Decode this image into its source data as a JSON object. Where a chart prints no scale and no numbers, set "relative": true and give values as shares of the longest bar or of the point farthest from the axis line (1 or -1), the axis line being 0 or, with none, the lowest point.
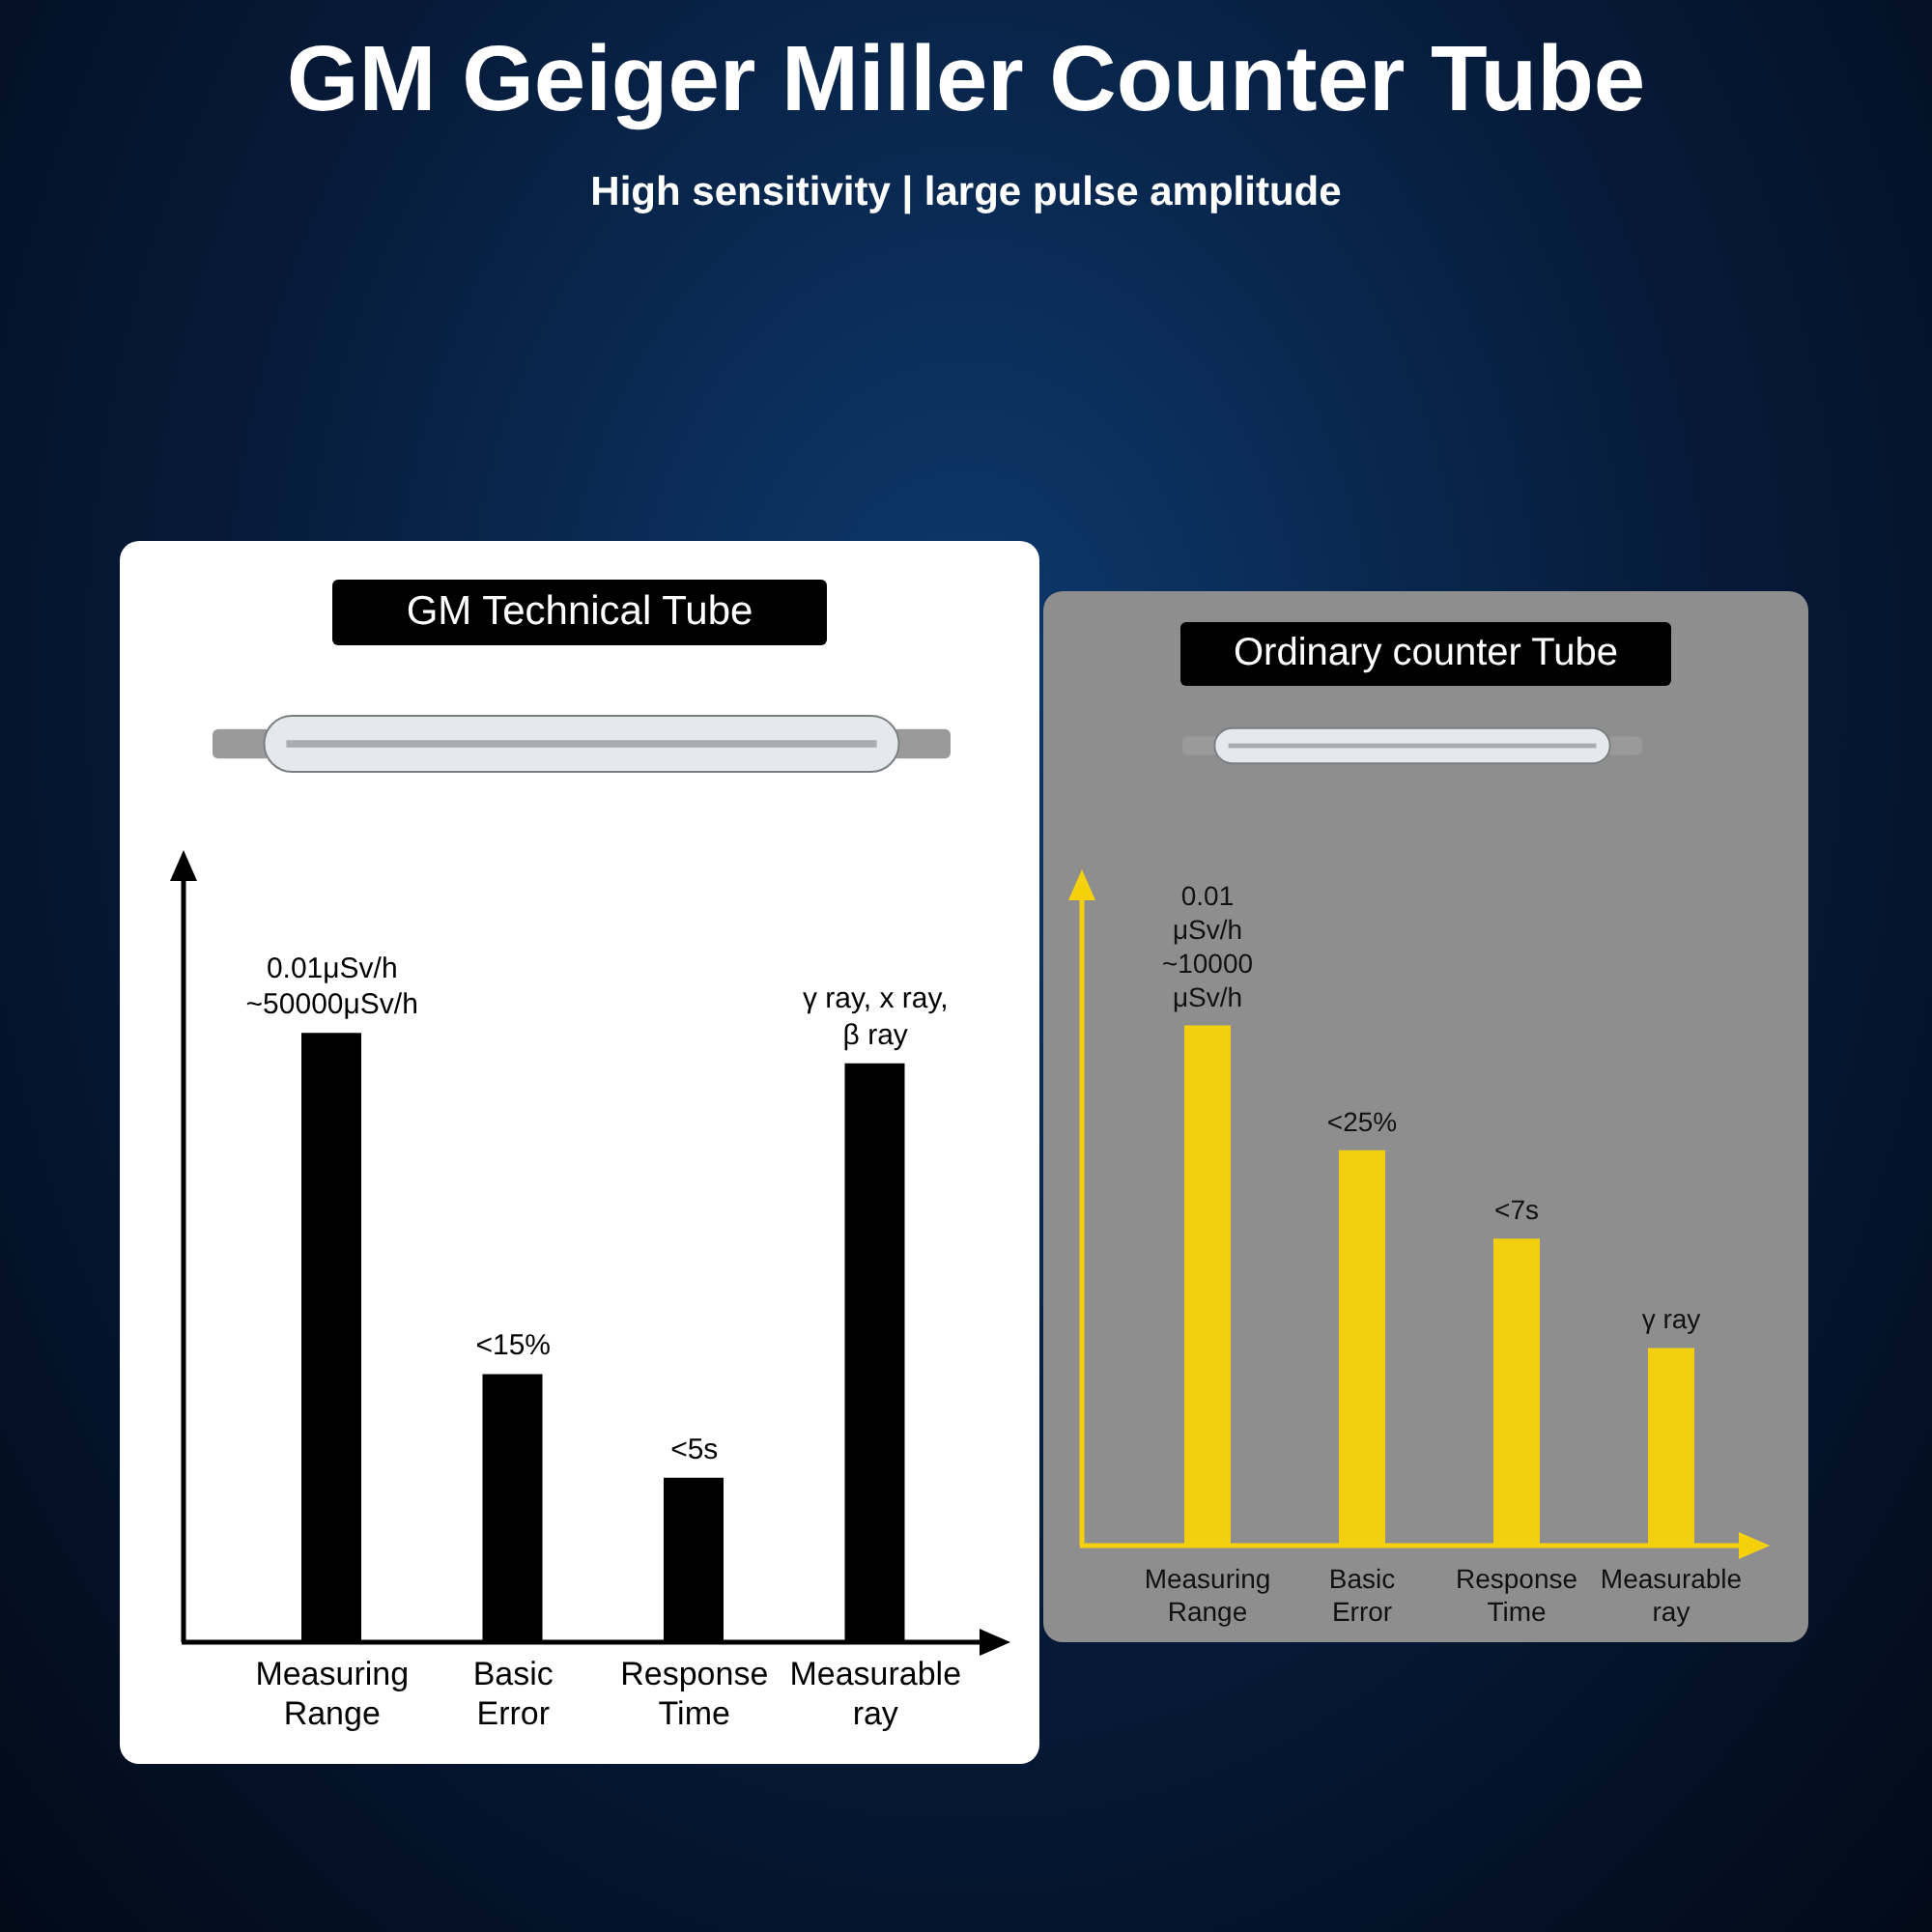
{
  "chart_data": [
    {
      "type": "bar",
      "title": "GM Technical Tube",
      "categories": [
        "Measuring Range",
        "Basic Error",
        "Response Time",
        "Measurable ray"
      ],
      "values": [
        1,
        0.44,
        0.27,
        0.95
      ],
      "color": "#000000",
      "relative": true,
      "annotations": [
        "GM Geiger Miller Counter Tube",
        "High sensitivity | large pulse amplitude",
        {
          "text": "0.01μSv/h ~50000μSv/h",
          "x": "Measuring Range",
          "y": 1
        },
        {
          "text": "<15%",
          "x": "Basic Error",
          "y": 0.44
        },
        {
          "text": "<5s",
          "x": "Response Time",
          "y": 0.27
        },
        {
          "text": "γ ray, x ray, β ray",
          "x": "Measurable ray",
          "y": 0.95
        }
      ]
    },
    {
      "type": "bar",
      "title": "Ordinary counter Tube",
      "categories": [
        "Measuring Range",
        "Basic Error",
        "Response Time",
        "Measurable ray"
      ],
      "values": [
        1,
        0.76,
        0.59,
        0.38
      ],
      "color": "#f2d00f",
      "relative": true,
      "annotations": [
        {
          "text": "0.01 μSv/h ~10000 μSv/h",
          "x": "Measuring Range",
          "y": 1
        },
        {
          "text": "<25%",
          "x": "Basic Error",
          "y": 0.76
        },
        {
          "text": "<7s",
          "x": "Response Time",
          "y": 0.59
        },
        {
          "text": "γ ray",
          "x": "Measurable ray",
          "y": 0.38
        }
      ]
    }
  ]
}
